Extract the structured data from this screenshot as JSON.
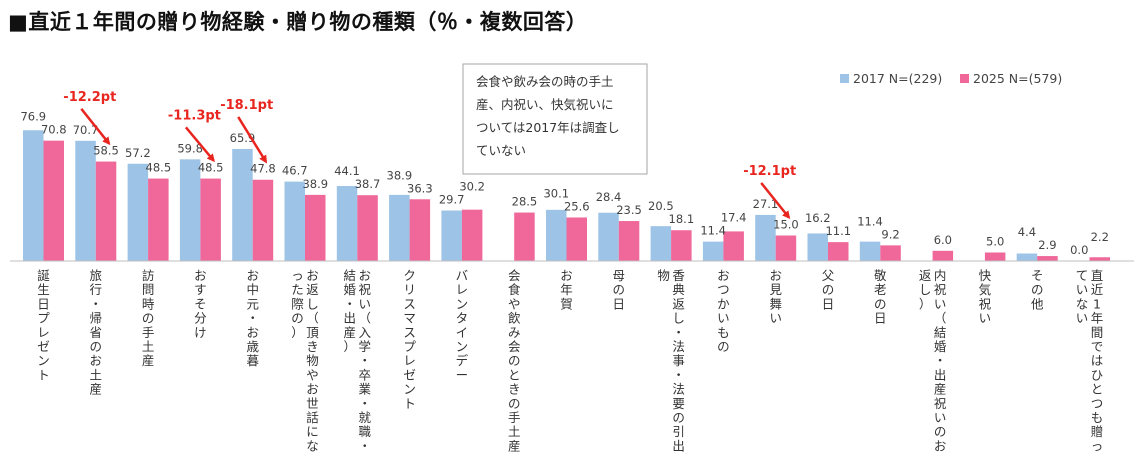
{
  "chart_data": {
    "type": "bar",
    "title": "■直近１年間の贈り物経験・贈り物の種類（％・複数回答）",
    "colors": {
      "2017": "#9dc3e6",
      "2025": "#f0679a",
      "delta": "#e8251f"
    },
    "categories": [
      "誕生日プレゼント",
      "旅行・帰省のお土産",
      "訪問時の手土産",
      "おすそ分け",
      "お中元・お歳暮",
      "お返し（頂き物やお世話になった際の）",
      "お祝い（入学・卒業・就職・結婚・出産）",
      "クリスマスプレゼント",
      "バレンタインデー",
      "会食や飲み会のときの手土産",
      "お年賀",
      "母の日",
      "香典返し・法事・法要の引出物",
      "おつかいもの",
      "お見舞い",
      "父の日",
      "敬老の日",
      "内祝い（結婚・出産祝いのお返し）",
      "快気祝い",
      "その他",
      "直近1年間ではひとつも贈っていない"
    ],
    "series": [
      {
        "name": "2017 N=(229)",
        "values": [
          76.9,
          70.7,
          57.2,
          59.8,
          65.9,
          46.7,
          44.1,
          38.9,
          29.7,
          null,
          30.1,
          28.4,
          20.5,
          11.4,
          27.1,
          16.2,
          11.4,
          null,
          null,
          4.4,
          0.0
        ]
      },
      {
        "name": "2025 N=(579)",
        "values": [
          70.8,
          58.5,
          48.5,
          48.5,
          47.8,
          38.9,
          38.7,
          36.3,
          30.2,
          28.5,
          25.6,
          23.5,
          18.1,
          17.4,
          15.0,
          11.1,
          9.2,
          6.0,
          5.0,
          2.9,
          2.2
        ]
      }
    ],
    "value_labels": {
      "2017": [
        "76.9",
        "70.7",
        "57.2",
        "59.8",
        "65.9",
        "46.7",
        "44.1",
        "38.9",
        "29.7",
        "",
        "30.1",
        "28.4",
        "20.5",
        "11.4",
        "27.1",
        "16.2",
        "11.4",
        "",
        "",
        "4.4",
        "0.0"
      ],
      "2025": [
        "70.8",
        "58.5",
        "48.5",
        "48.5",
        "47.8",
        "38.9",
        "38.7",
        "36.3",
        "30.2",
        "28.5",
        "25.6",
        "23.5",
        "18.1",
        "17.4",
        "15.0",
        "11.1",
        "9.2",
        "6.0",
        "5.0",
        "2.9",
        "2.2"
      ]
    },
    "annotations": [
      {
        "category_index": 1,
        "text": "-12.2pt"
      },
      {
        "category_index": 3,
        "text": "-11.3pt"
      },
      {
        "category_index": 4,
        "text": "-18.1pt"
      },
      {
        "category_index": 14,
        "text": "-12.1pt"
      }
    ],
    "note": [
      "会食や飲み会の時の手土",
      "産、内祝い、快気祝いに",
      "ついては2017年は調査し",
      "ていない"
    ],
    "legend_position": "top-right",
    "ylim": [
      0,
      100
    ],
    "grid": false
  }
}
